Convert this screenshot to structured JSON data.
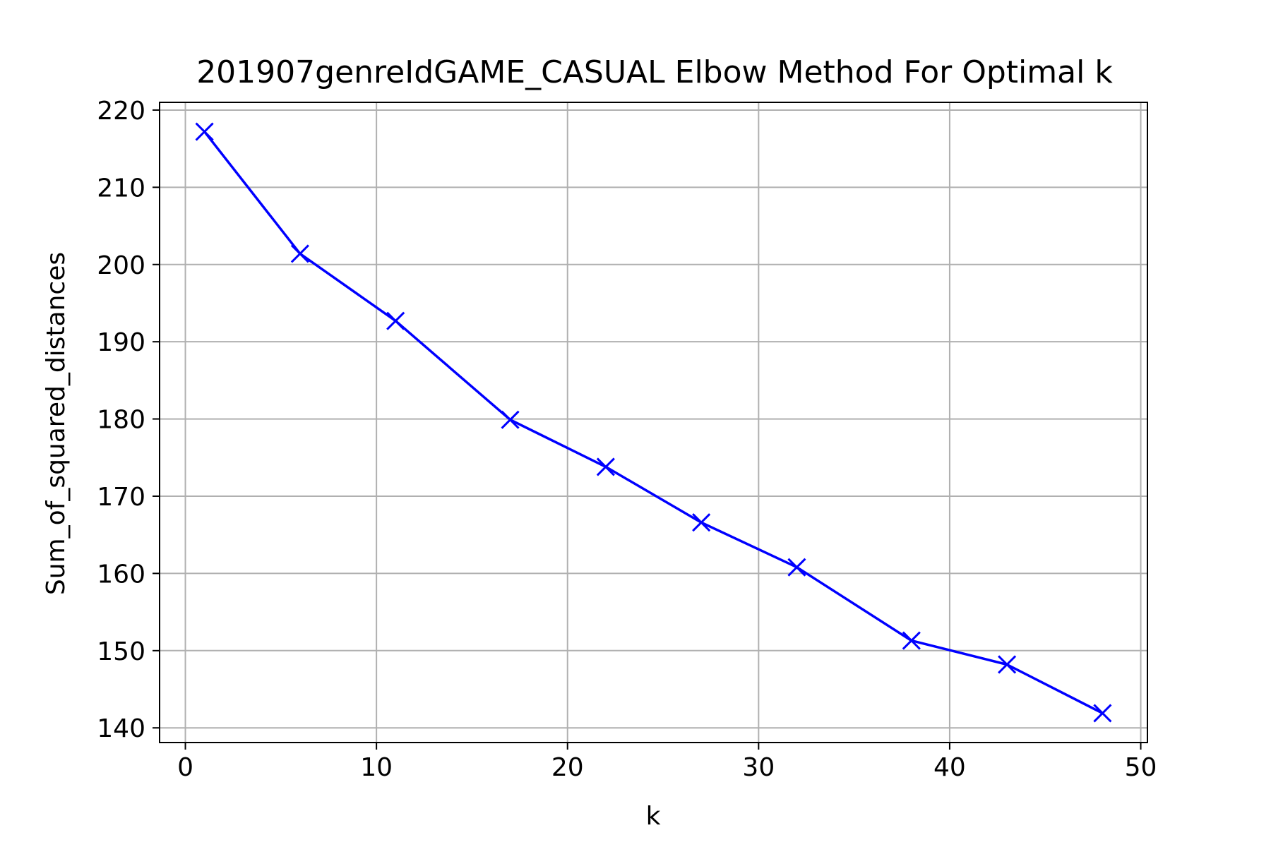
{
  "chart_data": {
    "type": "line",
    "title": "201907genreIdGAME_CASUAL Elbow Method For Optimal k",
    "xlabel": "k",
    "ylabel": "Sum_of_squared_distances",
    "xlim": [
      -1.35,
      50.35
    ],
    "ylim": [
      138.1,
      221.0
    ],
    "x_ticks": [
      0,
      10,
      20,
      30,
      40,
      50
    ],
    "y_ticks": [
      140,
      150,
      160,
      170,
      180,
      190,
      200,
      210,
      220
    ],
    "grid": true,
    "series": [
      {
        "color": "#0000ff",
        "marker": "x",
        "x": [
          1,
          6,
          11,
          17,
          22,
          27,
          32,
          38,
          43,
          48
        ],
        "y": [
          217.2,
          201.4,
          192.7,
          179.9,
          173.8,
          166.6,
          160.8,
          151.3,
          148.2,
          141.9
        ]
      }
    ]
  }
}
